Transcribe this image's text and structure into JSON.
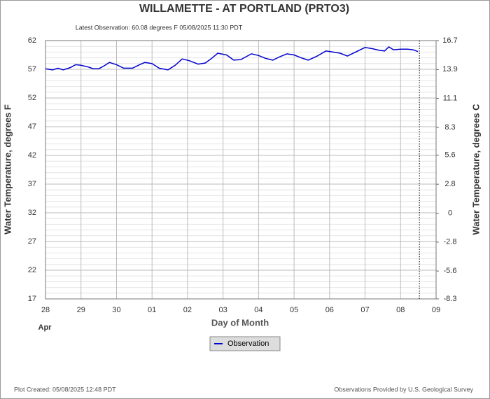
{
  "chart_data": {
    "type": "line",
    "title": "WILLAMETTE - AT PORTLAND  (PRTO3)",
    "subtitle": "Latest Observation: 60.08 degrees F 05/08/2025 11:30 PDT",
    "xlabel": "Day of Month",
    "x_sublabel": "Apr",
    "ylabel": "Water Temperature, degrees F",
    "y2label": "Water Temperature, degrees C",
    "footer_left": "Plot Created: 05/08/2025 12:48 PDT",
    "footer_right": "Observations Provided by U.S. Geological Survey",
    "xlim": [
      0,
      11
    ],
    "xticks": [
      {
        "value": 0,
        "label": "28"
      },
      {
        "value": 1,
        "label": "29"
      },
      {
        "value": 2,
        "label": "30"
      },
      {
        "value": 3,
        "label": "01"
      },
      {
        "value": 4,
        "label": "02"
      },
      {
        "value": 5,
        "label": "03"
      },
      {
        "value": 6,
        "label": "04"
      },
      {
        "value": 7,
        "label": "05"
      },
      {
        "value": 8,
        "label": "06"
      },
      {
        "value": 9,
        "label": "07"
      },
      {
        "value": 10,
        "label": "08"
      },
      {
        "value": 11,
        "label": "09"
      }
    ],
    "ylim": [
      17,
      62
    ],
    "yticks": [
      17,
      22,
      27,
      32,
      37,
      42,
      47,
      52,
      57,
      62
    ],
    "y2lim": [
      -8.3,
      16.7
    ],
    "y2ticks": [
      -8.3,
      -5.6,
      -2.8,
      0,
      2.8,
      5.6,
      8.3,
      11.1,
      13.9,
      16.7
    ],
    "grid": true,
    "minor_grid": true,
    "current_time_x": 10.53,
    "legend": "bottom",
    "x": [
      0,
      0.2,
      0.35,
      0.5,
      0.7,
      0.85,
      1.0,
      1.2,
      1.35,
      1.5,
      1.65,
      1.8,
      2.0,
      2.2,
      2.45,
      2.65,
      2.8,
      3.0,
      3.2,
      3.45,
      3.65,
      3.85,
      4.05,
      4.3,
      4.5,
      4.7,
      4.85,
      5.1,
      5.3,
      5.5,
      5.8,
      6.0,
      6.2,
      6.4,
      6.6,
      6.8,
      7.0,
      7.2,
      7.4,
      7.65,
      7.9,
      8.1,
      8.3,
      8.5,
      8.7,
      9.0,
      9.2,
      9.4,
      9.55,
      9.67,
      9.8,
      10.0,
      10.2,
      10.35,
      10.49
    ],
    "series": [
      {
        "name": "Observation",
        "color": "#0000cc",
        "values": [
          57.1,
          56.9,
          57.2,
          56.9,
          57.3,
          57.8,
          57.7,
          57.4,
          57.1,
          57.1,
          57.6,
          58.2,
          57.8,
          57.2,
          57.2,
          57.8,
          58.2,
          58.0,
          57.2,
          56.9,
          57.7,
          58.8,
          58.5,
          57.9,
          58.1,
          59.0,
          59.8,
          59.5,
          58.6,
          58.7,
          59.7,
          59.4,
          58.9,
          58.6,
          59.2,
          59.7,
          59.5,
          59.0,
          58.6,
          59.3,
          60.2,
          60.0,
          59.8,
          59.3,
          59.9,
          60.8,
          60.6,
          60.3,
          60.2,
          60.9,
          60.4,
          60.5,
          60.5,
          60.4,
          60.08
        ]
      }
    ]
  }
}
